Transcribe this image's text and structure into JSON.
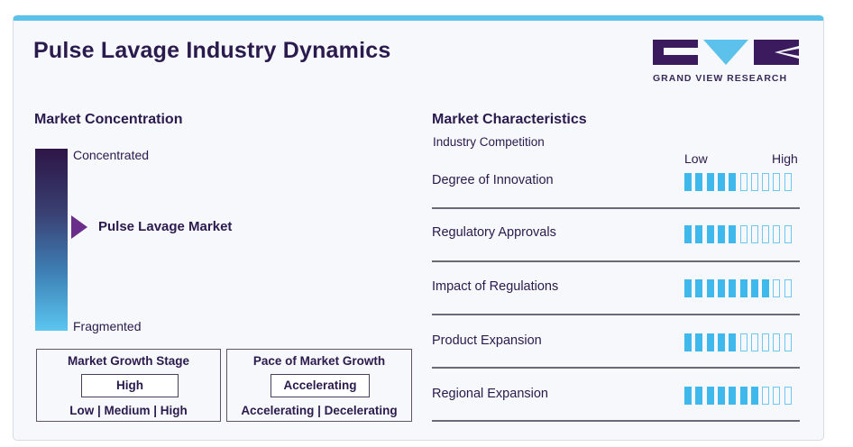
{
  "title": "Pulse Lavage Industry Dynamics",
  "logo": {
    "text": "GRAND VIEW RESEARCH",
    "colors": {
      "dark": "#3b1b5e",
      "accent": "#5cc2ec"
    }
  },
  "market_concentration": {
    "heading": "Market Concentration",
    "top_label": "Concentrated",
    "bottom_label": "Fragmented",
    "marker_label": "Pulse Lavage Market",
    "marker_level": 0.45
  },
  "growth_stage": {
    "title": "Market Growth Stage",
    "value": "High",
    "options": "Low | Medium | High"
  },
  "growth_pace": {
    "title": "Pace of Market Growth",
    "value": "Accelerating",
    "options": "Accelerating | Decelerating"
  },
  "characteristics": {
    "heading": "Market Characteristics",
    "subheading": "Industry Competition",
    "scale_low": "Low",
    "scale_high": "High",
    "segments_total": 10,
    "rows": [
      {
        "label": "Degree of Innovation",
        "level": 5
      },
      {
        "label": "Regulatory Approvals",
        "level": 5
      },
      {
        "label": "Impact of Regulations",
        "level": 8
      },
      {
        "label": "Product Expansion",
        "level": 5
      },
      {
        "label": "Regional Expansion",
        "level": 7
      }
    ]
  },
  "colors": {
    "title": "#2b1a4d",
    "bar_on": "#3fb8ec",
    "bar_off": "#6cc8ee",
    "pointer": "#6b2d8a",
    "card_border_top": "#5cc2ec"
  }
}
